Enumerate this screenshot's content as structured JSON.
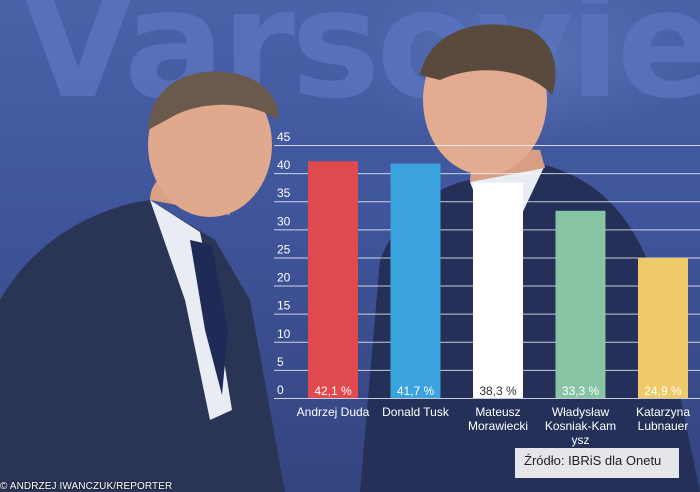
{
  "photo": {
    "backdrop_word": "Varsovie",
    "credit": "© ANDRZEJ IWANCZUK/REPORTER"
  },
  "source": "Źródło: IBRiS dla Onetu",
  "chart_data": {
    "type": "bar",
    "categories": [
      "Andrzej Duda",
      "Donald Tusk",
      "Mateusz Morawiecki",
      "Władysław Kosniak-Kamysz",
      "Katarzyna Lubnauer"
    ],
    "category_lines": [
      [
        "Andrzej Duda"
      ],
      [
        "Donald Tusk"
      ],
      [
        "Mateusz",
        "Morawiecki"
      ],
      [
        "Władysław",
        "Kosniak-Kam",
        "ysz"
      ],
      [
        "Katarzyna",
        "Lubnauer"
      ]
    ],
    "values": [
      42.1,
      41.7,
      38.3,
      33.3,
      24.9
    ],
    "value_labels": [
      "42,1 %",
      "41,7 %",
      "38,3 %",
      "33,3 %",
      "24,9 %"
    ],
    "colors": [
      "#e04a4f",
      "#3aa3de",
      "#ffffff",
      "#86c4a4",
      "#efca68"
    ],
    "yticks": [
      0,
      5,
      10,
      15,
      20,
      25,
      30,
      35,
      40,
      45
    ],
    "ylim": [
      0,
      45
    ],
    "grid": true,
    "title": "",
    "xlabel": "",
    "ylabel": ""
  }
}
